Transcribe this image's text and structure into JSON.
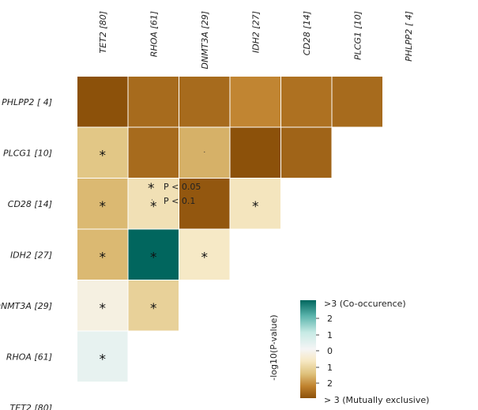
{
  "chart_data": {
    "type": "heatmap",
    "title": "",
    "xlabel": "",
    "ylabel": "",
    "columns": [
      "TET2 [80]",
      "RHOA [61]",
      "DNMT3A [29]",
      "IDH2 [27]",
      "CD28 [14]",
      "PLCG1 [10]",
      "PHLPP2 [ 4]"
    ],
    "rows": [
      "PHLPP2 [ 4]",
      "PLCG1 [10]",
      "CD28 [14]",
      "IDH2 [27]",
      "DNMT3A [29]",
      "RHOA [61]",
      "TET2 [80]"
    ],
    "cells": [
      {
        "row": 0,
        "col": 0,
        "value": -3.0,
        "sig": ""
      },
      {
        "row": 0,
        "col": 1,
        "value": -2.6,
        "sig": ""
      },
      {
        "row": 0,
        "col": 2,
        "value": -2.6,
        "sig": ""
      },
      {
        "row": 0,
        "col": 3,
        "value": -2.2,
        "sig": ""
      },
      {
        "row": 0,
        "col": 4,
        "value": -2.5,
        "sig": ""
      },
      {
        "row": 0,
        "col": 5,
        "value": -2.6,
        "sig": ""
      },
      {
        "row": 1,
        "col": 0,
        "value": -1.4,
        "sig": "*"
      },
      {
        "row": 1,
        "col": 1,
        "value": -2.6,
        "sig": ""
      },
      {
        "row": 1,
        "col": 2,
        "value": -1.7,
        "sig": "·"
      },
      {
        "row": 1,
        "col": 3,
        "value": -3.0,
        "sig": ""
      },
      {
        "row": 1,
        "col": 4,
        "value": -2.7,
        "sig": ""
      },
      {
        "row": 2,
        "col": 0,
        "value": -1.6,
        "sig": "*"
      },
      {
        "row": 2,
        "col": 1,
        "value": -0.9,
        "sig": "*"
      },
      {
        "row": 2,
        "col": 2,
        "value": -2.9,
        "sig": ""
      },
      {
        "row": 2,
        "col": 3,
        "value": -0.8,
        "sig": "*"
      },
      {
        "row": 3,
        "col": 0,
        "value": -1.6,
        "sig": "*"
      },
      {
        "row": 3,
        "col": 1,
        "value": 3.0,
        "sig": "*"
      },
      {
        "row": 3,
        "col": 2,
        "value": -0.7,
        "sig": "*"
      },
      {
        "row": 4,
        "col": 0,
        "value": -0.3,
        "sig": "*"
      },
      {
        "row": 4,
        "col": 1,
        "value": -1.2,
        "sig": "*"
      },
      {
        "row": 5,
        "col": 0,
        "value": 0.3,
        "sig": "*"
      }
    ],
    "overlay_legend": [
      {
        "symbol": "*",
        "text": "P < 0.05"
      },
      {
        "symbol": "·",
        "text": "P < 0.1"
      }
    ],
    "colorbar": {
      "title": "-log10(P-value)",
      "top_label": ">3 (Co-occurence)",
      "bottom_label": "> 3 (Mutually exclusive)",
      "ticks": [
        "2",
        "1",
        "0",
        "1",
        "2"
      ],
      "range": [
        -3,
        3
      ],
      "colors": {
        "positive_max": "#01665e",
        "positive_mid": "#5ab4ac",
        "positive_low": "#c7eae5",
        "neutral": "#f5f5f5",
        "negative_low": "#f6e8c3",
        "negative_mid": "#dfc27d",
        "negative_high": "#bf812d",
        "negative_max": "#8c510a"
      }
    }
  }
}
